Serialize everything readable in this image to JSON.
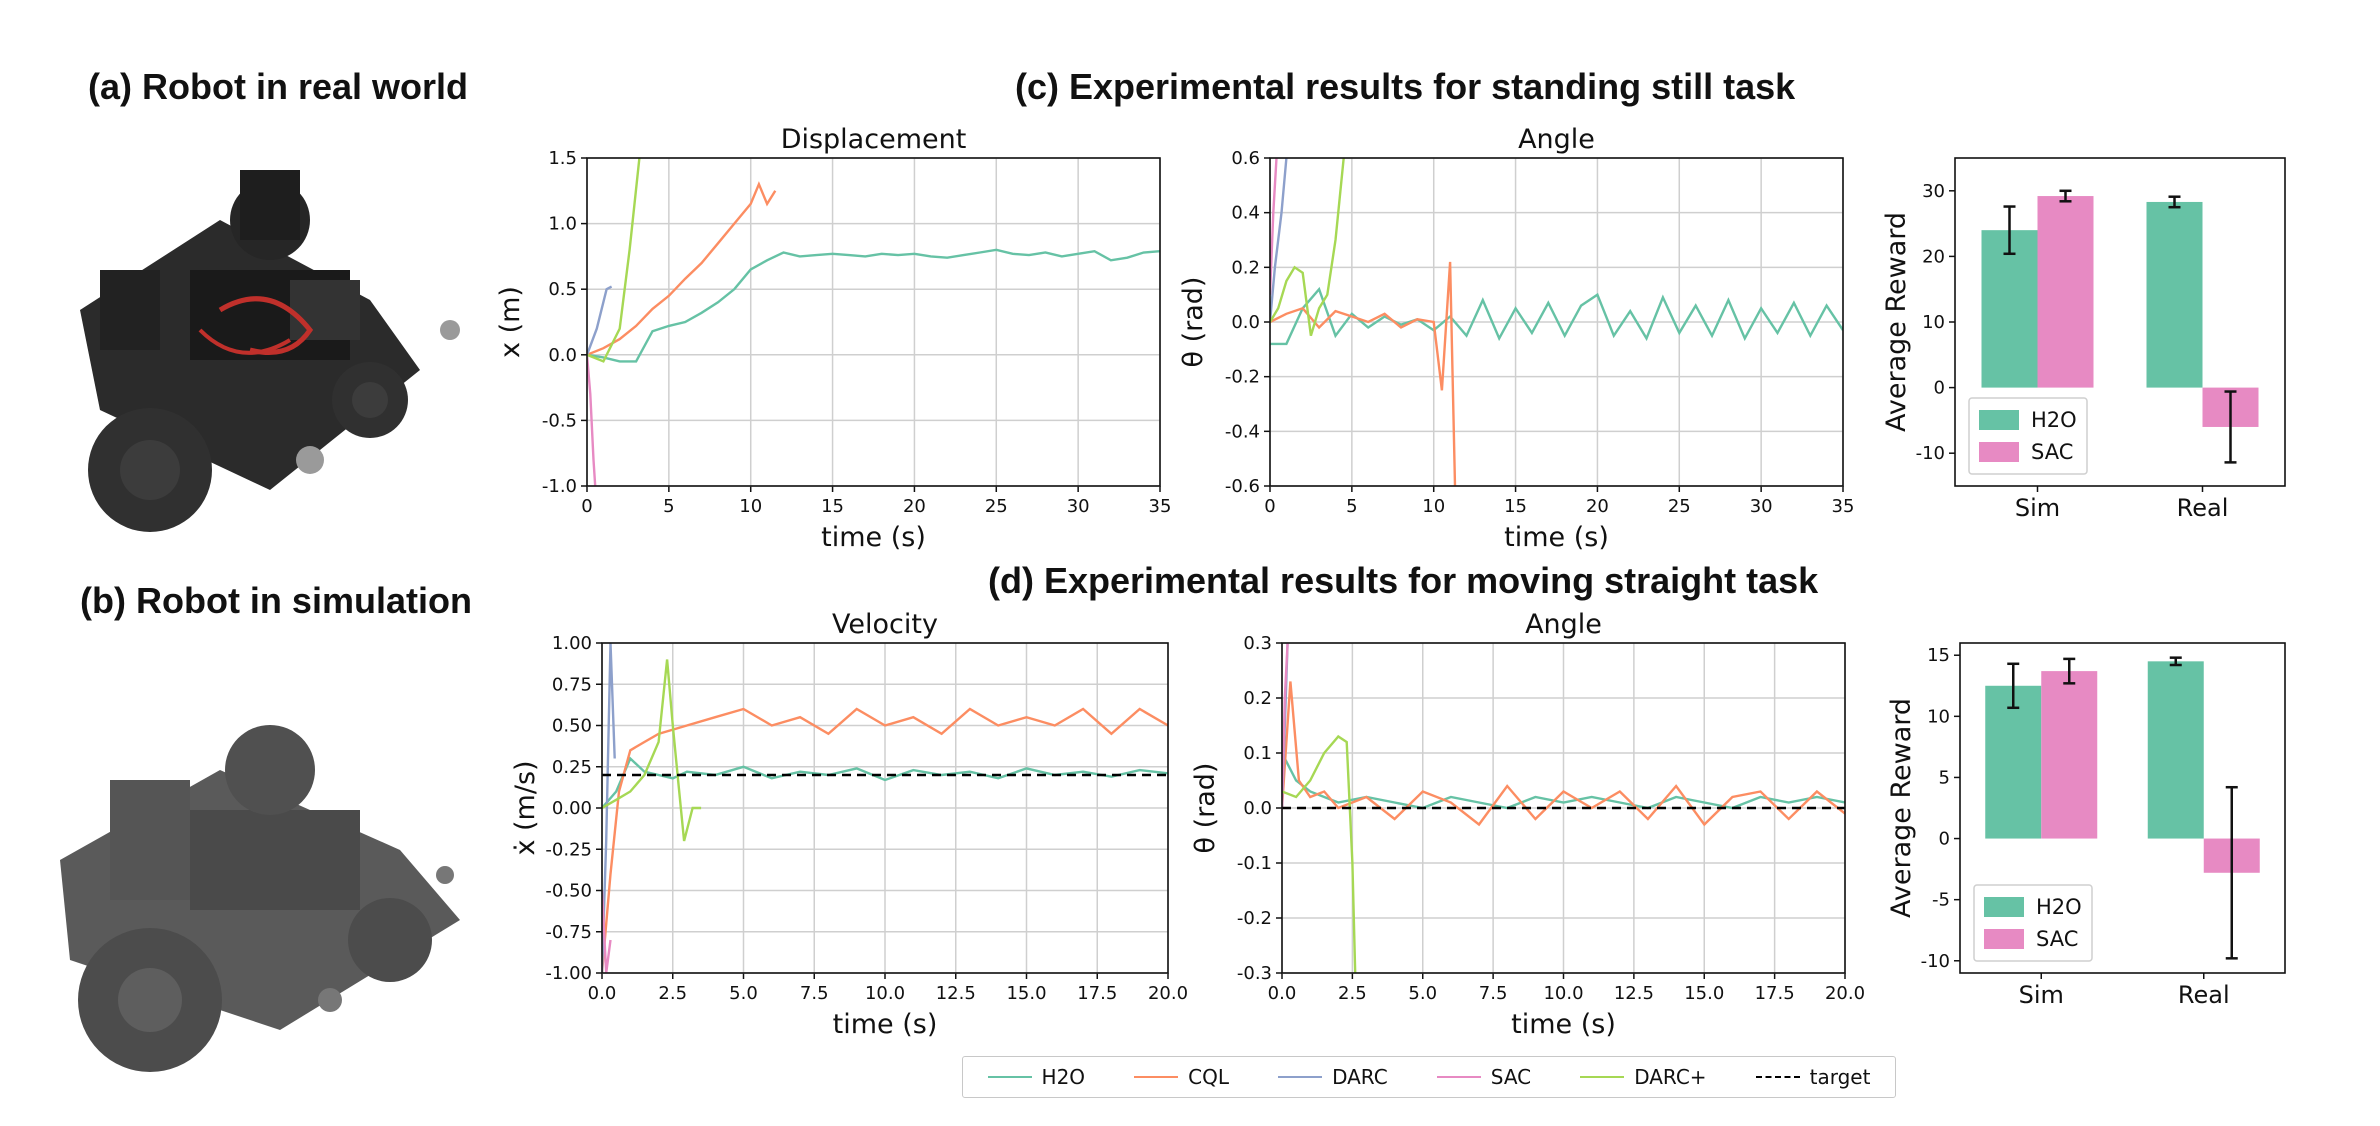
{
  "headings": {
    "a": "(a) Robot in real world",
    "b": "(b) Robot in simulation",
    "c": "(c) Experimental results for standing still task",
    "d": "(d) Experimental results for moving straight task"
  },
  "colors": {
    "H2O": "#66c2a5",
    "CQL": "#fc8d62",
    "DARC": "#8da0cb",
    "SAC": "#e78ac3",
    "DARC+": "#a6d854",
    "target": "#000000"
  },
  "legend": [
    {
      "name": "H2O",
      "color": "#66c2a5",
      "dashed": false
    },
    {
      "name": "CQL",
      "color": "#fc8d62",
      "dashed": false
    },
    {
      "name": "DARC",
      "color": "#8da0cb",
      "dashed": false
    },
    {
      "name": "SAC",
      "color": "#e78ac3",
      "dashed": false
    },
    {
      "name": "DARC+",
      "color": "#a6d854",
      "dashed": false
    },
    {
      "name": "target",
      "color": "#000000",
      "dashed": true
    }
  ],
  "chart_data": [
    {
      "id": "disp",
      "type": "line",
      "title": "Displacement",
      "xlabel": "time (s)",
      "ylabel": "x (m)",
      "xlim": [
        0,
        35
      ],
      "ylim": [
        -1.0,
        1.5
      ],
      "xticks": [
        "0",
        "5",
        "10",
        "15",
        "20",
        "25",
        "30",
        "35"
      ],
      "yticks": [
        "-1.0",
        "-0.5",
        "0.0",
        "0.5",
        "1.0",
        "1.5"
      ],
      "grid": true,
      "series": [
        {
          "name": "H2O",
          "x": [
            0,
            1,
            2,
            3,
            4,
            5,
            6,
            7,
            8,
            9,
            10,
            11,
            12,
            13,
            14,
            15,
            16,
            17,
            18,
            19,
            20,
            21,
            22,
            23,
            24,
            25,
            26,
            27,
            28,
            29,
            30,
            31,
            32,
            33,
            34,
            35
          ],
          "y": [
            0,
            -0.02,
            -0.05,
            -0.05,
            0.18,
            0.22,
            0.25,
            0.32,
            0.4,
            0.5,
            0.65,
            0.72,
            0.78,
            0.75,
            0.76,
            0.77,
            0.76,
            0.75,
            0.77,
            0.76,
            0.77,
            0.75,
            0.74,
            0.76,
            0.78,
            0.8,
            0.77,
            0.76,
            0.78,
            0.75,
            0.77,
            0.79,
            0.72,
            0.74,
            0.78,
            0.79
          ]
        },
        {
          "name": "CQL",
          "x": [
            0,
            1,
            2,
            3,
            4,
            5,
            6,
            7,
            8,
            9,
            10,
            10.5,
            11,
            11.5
          ],
          "y": [
            0,
            0.05,
            0.12,
            0.22,
            0.35,
            0.45,
            0.58,
            0.7,
            0.85,
            1.0,
            1.15,
            1.3,
            1.15,
            1.25
          ]
        },
        {
          "name": "DARC",
          "x": [
            0,
            0.6,
            1.2,
            1.5
          ],
          "y": [
            0,
            0.2,
            0.5,
            0.52
          ]
        },
        {
          "name": "SAC",
          "x": [
            0,
            0.2,
            0.4,
            0.5
          ],
          "y": [
            0,
            -0.3,
            -0.8,
            -1.0
          ]
        },
        {
          "name": "DARC+",
          "x": [
            0,
            1,
            2,
            2.6,
            3.2
          ],
          "y": [
            0,
            -0.05,
            0.2,
            0.8,
            1.5
          ]
        }
      ]
    },
    {
      "id": "ang1",
      "type": "line",
      "title": "Angle",
      "xlabel": "time (s)",
      "ylabel": "θ (rad)",
      "xlim": [
        0,
        35
      ],
      "ylim": [
        -0.6,
        0.6
      ],
      "xticks": [
        "0",
        "5",
        "10",
        "15",
        "20",
        "25",
        "30",
        "35"
      ],
      "yticks": [
        "-0.6",
        "-0.4",
        "-0.2",
        "0.0",
        "0.2",
        "0.4",
        "0.6"
      ],
      "grid": true,
      "series": [
        {
          "name": "H2O",
          "x": [
            0,
            1,
            2,
            3,
            4,
            5,
            6,
            7,
            8,
            9,
            10,
            11,
            12,
            13,
            14,
            15,
            16,
            17,
            18,
            19,
            20,
            21,
            22,
            23,
            24,
            25,
            26,
            27,
            28,
            29,
            30,
            31,
            32,
            33,
            34,
            35
          ],
          "y": [
            -0.08,
            -0.08,
            0.05,
            0.12,
            -0.05,
            0.03,
            -0.02,
            0.02,
            -0.01,
            0.01,
            -0.03,
            0.02,
            -0.05,
            0.08,
            -0.06,
            0.05,
            -0.04,
            0.07,
            -0.05,
            0.06,
            0.1,
            -0.05,
            0.04,
            -0.06,
            0.09,
            -0.04,
            0.06,
            -0.05,
            0.08,
            -0.06,
            0.05,
            -0.04,
            0.07,
            -0.05,
            0.06,
            -0.03
          ]
        },
        {
          "name": "CQL",
          "x": [
            0,
            1,
            2,
            3,
            4,
            5,
            6,
            7,
            8,
            9,
            10,
            10.5,
            11,
            11.3
          ],
          "y": [
            0,
            0.03,
            0.05,
            -0.02,
            0.04,
            0.02,
            0,
            0.03,
            -0.02,
            0.01,
            0,
            -0.25,
            0.22,
            -0.6
          ]
        },
        {
          "name": "DARC",
          "x": [
            0,
            0.3,
            0.7,
            1.0
          ],
          "y": [
            0,
            0.2,
            0.4,
            0.6
          ]
        },
        {
          "name": "SAC",
          "x": [
            0,
            0.2,
            0.4
          ],
          "y": [
            0.1,
            0.4,
            0.6
          ]
        },
        {
          "name": "DARC+",
          "x": [
            0,
            0.5,
            1,
            1.5,
            2,
            2.5,
            3,
            3.5,
            4,
            4.5
          ],
          "y": [
            0,
            0.05,
            0.15,
            0.2,
            0.18,
            -0.05,
            0.05,
            0.1,
            0.3,
            0.6
          ]
        }
      ]
    },
    {
      "id": "bar1",
      "type": "bar",
      "ylabel": "Average Reward",
      "categories": [
        "Sim",
        "Real"
      ],
      "ylim": [
        -15,
        35
      ],
      "yticks": [
        "-10",
        "0",
        "10",
        "20",
        "30"
      ],
      "legend": [
        "H2O",
        "SAC"
      ],
      "series": [
        {
          "name": "H2O",
          "values": [
            24,
            28.3
          ],
          "err": [
            3.6,
            0.8
          ]
        },
        {
          "name": "SAC",
          "values": [
            29.2,
            -6
          ],
          "err": [
            0.8,
            5.4
          ]
        }
      ]
    },
    {
      "id": "vel",
      "type": "line",
      "title": "Velocity",
      "xlabel": "time (s)",
      "ylabel": "ẋ (m/s)",
      "xlim": [
        0,
        20
      ],
      "ylim": [
        -1.0,
        1.0
      ],
      "xticks": [
        "0.0",
        "2.5",
        "5.0",
        "7.5",
        "10.0",
        "12.5",
        "15.0",
        "17.5",
        "20.0"
      ],
      "yticks": [
        "-1.00",
        "-0.75",
        "-0.50",
        "-0.25",
        "0.00",
        "0.25",
        "0.50",
        "0.75",
        "1.00"
      ],
      "grid": true,
      "series": [
        {
          "name": "H2O",
          "x": [
            0,
            0.5,
            1,
            1.5,
            2,
            2.5,
            3,
            4,
            5,
            6,
            7,
            8,
            9,
            10,
            11,
            12,
            13,
            14,
            15,
            16,
            17,
            18,
            19,
            20
          ],
          "y": [
            0,
            0.1,
            0.3,
            0.22,
            0.2,
            0.18,
            0.22,
            0.2,
            0.25,
            0.18,
            0.22,
            0.2,
            0.24,
            0.17,
            0.23,
            0.2,
            0.22,
            0.18,
            0.24,
            0.2,
            0.22,
            0.19,
            0.23,
            0.21
          ]
        },
        {
          "name": "CQL",
          "x": [
            0,
            0.3,
            0.6,
            1,
            1.5,
            2,
            3,
            4,
            5,
            6,
            7,
            8,
            9,
            10,
            11,
            12,
            13,
            14,
            15,
            16,
            17,
            18,
            19,
            20
          ],
          "y": [
            -1.0,
            -0.4,
            0.1,
            0.35,
            0.4,
            0.45,
            0.5,
            0.55,
            0.6,
            0.5,
            0.55,
            0.45,
            0.6,
            0.5,
            0.55,
            0.45,
            0.6,
            0.5,
            0.55,
            0.5,
            0.6,
            0.45,
            0.6,
            0.5
          ]
        },
        {
          "name": "DARC",
          "x": [
            0,
            0.15,
            0.3,
            0.45
          ],
          "y": [
            -1.0,
            -0.2,
            1.0,
            0.3
          ]
        },
        {
          "name": "SAC",
          "x": [
            0,
            0.15,
            0.3
          ],
          "y": [
            -0.5,
            -1.0,
            -0.8
          ]
        },
        {
          "name": "DARC+",
          "x": [
            0,
            0.5,
            1,
            1.5,
            2,
            2.3,
            2.5,
            2.7,
            2.9,
            3.2,
            3.5
          ],
          "y": [
            0,
            0.05,
            0.1,
            0.2,
            0.4,
            0.9,
            0.5,
            0.15,
            -0.2,
            0.0,
            0.0
          ]
        }
      ],
      "target": 0.2
    },
    {
      "id": "ang2",
      "type": "line",
      "title": "Angle",
      "xlabel": "time (s)",
      "ylabel": "θ (rad)",
      "xlim": [
        0,
        20
      ],
      "ylim": [
        -0.3,
        0.3
      ],
      "xticks": [
        "0.0",
        "2.5",
        "5.0",
        "7.5",
        "10.0",
        "12.5",
        "15.0",
        "17.5",
        "20.0"
      ],
      "yticks": [
        "-0.3",
        "-0.2",
        "-0.1",
        "0.0",
        "0.1",
        "0.2",
        "0.3"
      ],
      "grid": true,
      "series": [
        {
          "name": "H2O",
          "x": [
            0,
            0.5,
            1,
            1.5,
            2,
            3,
            4,
            5,
            6,
            7,
            8,
            9,
            10,
            11,
            12,
            13,
            14,
            15,
            16,
            17,
            18,
            19,
            20
          ],
          "y": [
            0.1,
            0.05,
            0.03,
            0.02,
            0.01,
            0.02,
            0.01,
            0.0,
            0.02,
            0.01,
            0.0,
            0.02,
            0.01,
            0.02,
            0.01,
            0.0,
            0.02,
            0.01,
            0.0,
            0.02,
            0.01,
            0.02,
            0.01
          ]
        },
        {
          "name": "CQL",
          "x": [
            0,
            0.3,
            0.6,
            1,
            1.5,
            2,
            3,
            4,
            5,
            6,
            7,
            8,
            9,
            10,
            11,
            12,
            13,
            14,
            15,
            16,
            17,
            18,
            19,
            20
          ],
          "y": [
            0.0,
            0.23,
            0.05,
            0.02,
            0.03,
            0.0,
            0.02,
            -0.02,
            0.03,
            0.01,
            -0.03,
            0.04,
            -0.02,
            0.03,
            0.0,
            0.03,
            -0.02,
            0.04,
            -0.03,
            0.02,
            0.03,
            -0.02,
            0.03,
            -0.01
          ]
        },
        {
          "name": "DARC",
          "x": [
            0,
            0.1,
            0.2
          ],
          "y": [
            0.0,
            0.15,
            0.3
          ]
        },
        {
          "name": "SAC",
          "x": [
            0,
            0.1,
            0.2
          ],
          "y": [
            0.0,
            0.2,
            0.3
          ]
        },
        {
          "name": "DARC+",
          "x": [
            0,
            0.5,
            1,
            1.5,
            2,
            2.3,
            2.5,
            2.6
          ],
          "y": [
            0.03,
            0.02,
            0.05,
            0.1,
            0.13,
            0.12,
            -0.1,
            -0.3
          ]
        }
      ],
      "target": 0.0
    },
    {
      "id": "bar2",
      "type": "bar",
      "ylabel": "Average Reward",
      "categories": [
        "Sim",
        "Real"
      ],
      "ylim": [
        -11,
        16
      ],
      "yticks": [
        "-10",
        "-5",
        "0",
        "5",
        "10",
        "15"
      ],
      "legend": [
        "H2O",
        "SAC"
      ],
      "series": [
        {
          "name": "H2O",
          "values": [
            12.5,
            14.5
          ],
          "err": [
            1.8,
            0.3
          ]
        },
        {
          "name": "SAC",
          "values": [
            13.7,
            -2.8
          ],
          "err": [
            1.0,
            7.0
          ]
        }
      ]
    }
  ]
}
